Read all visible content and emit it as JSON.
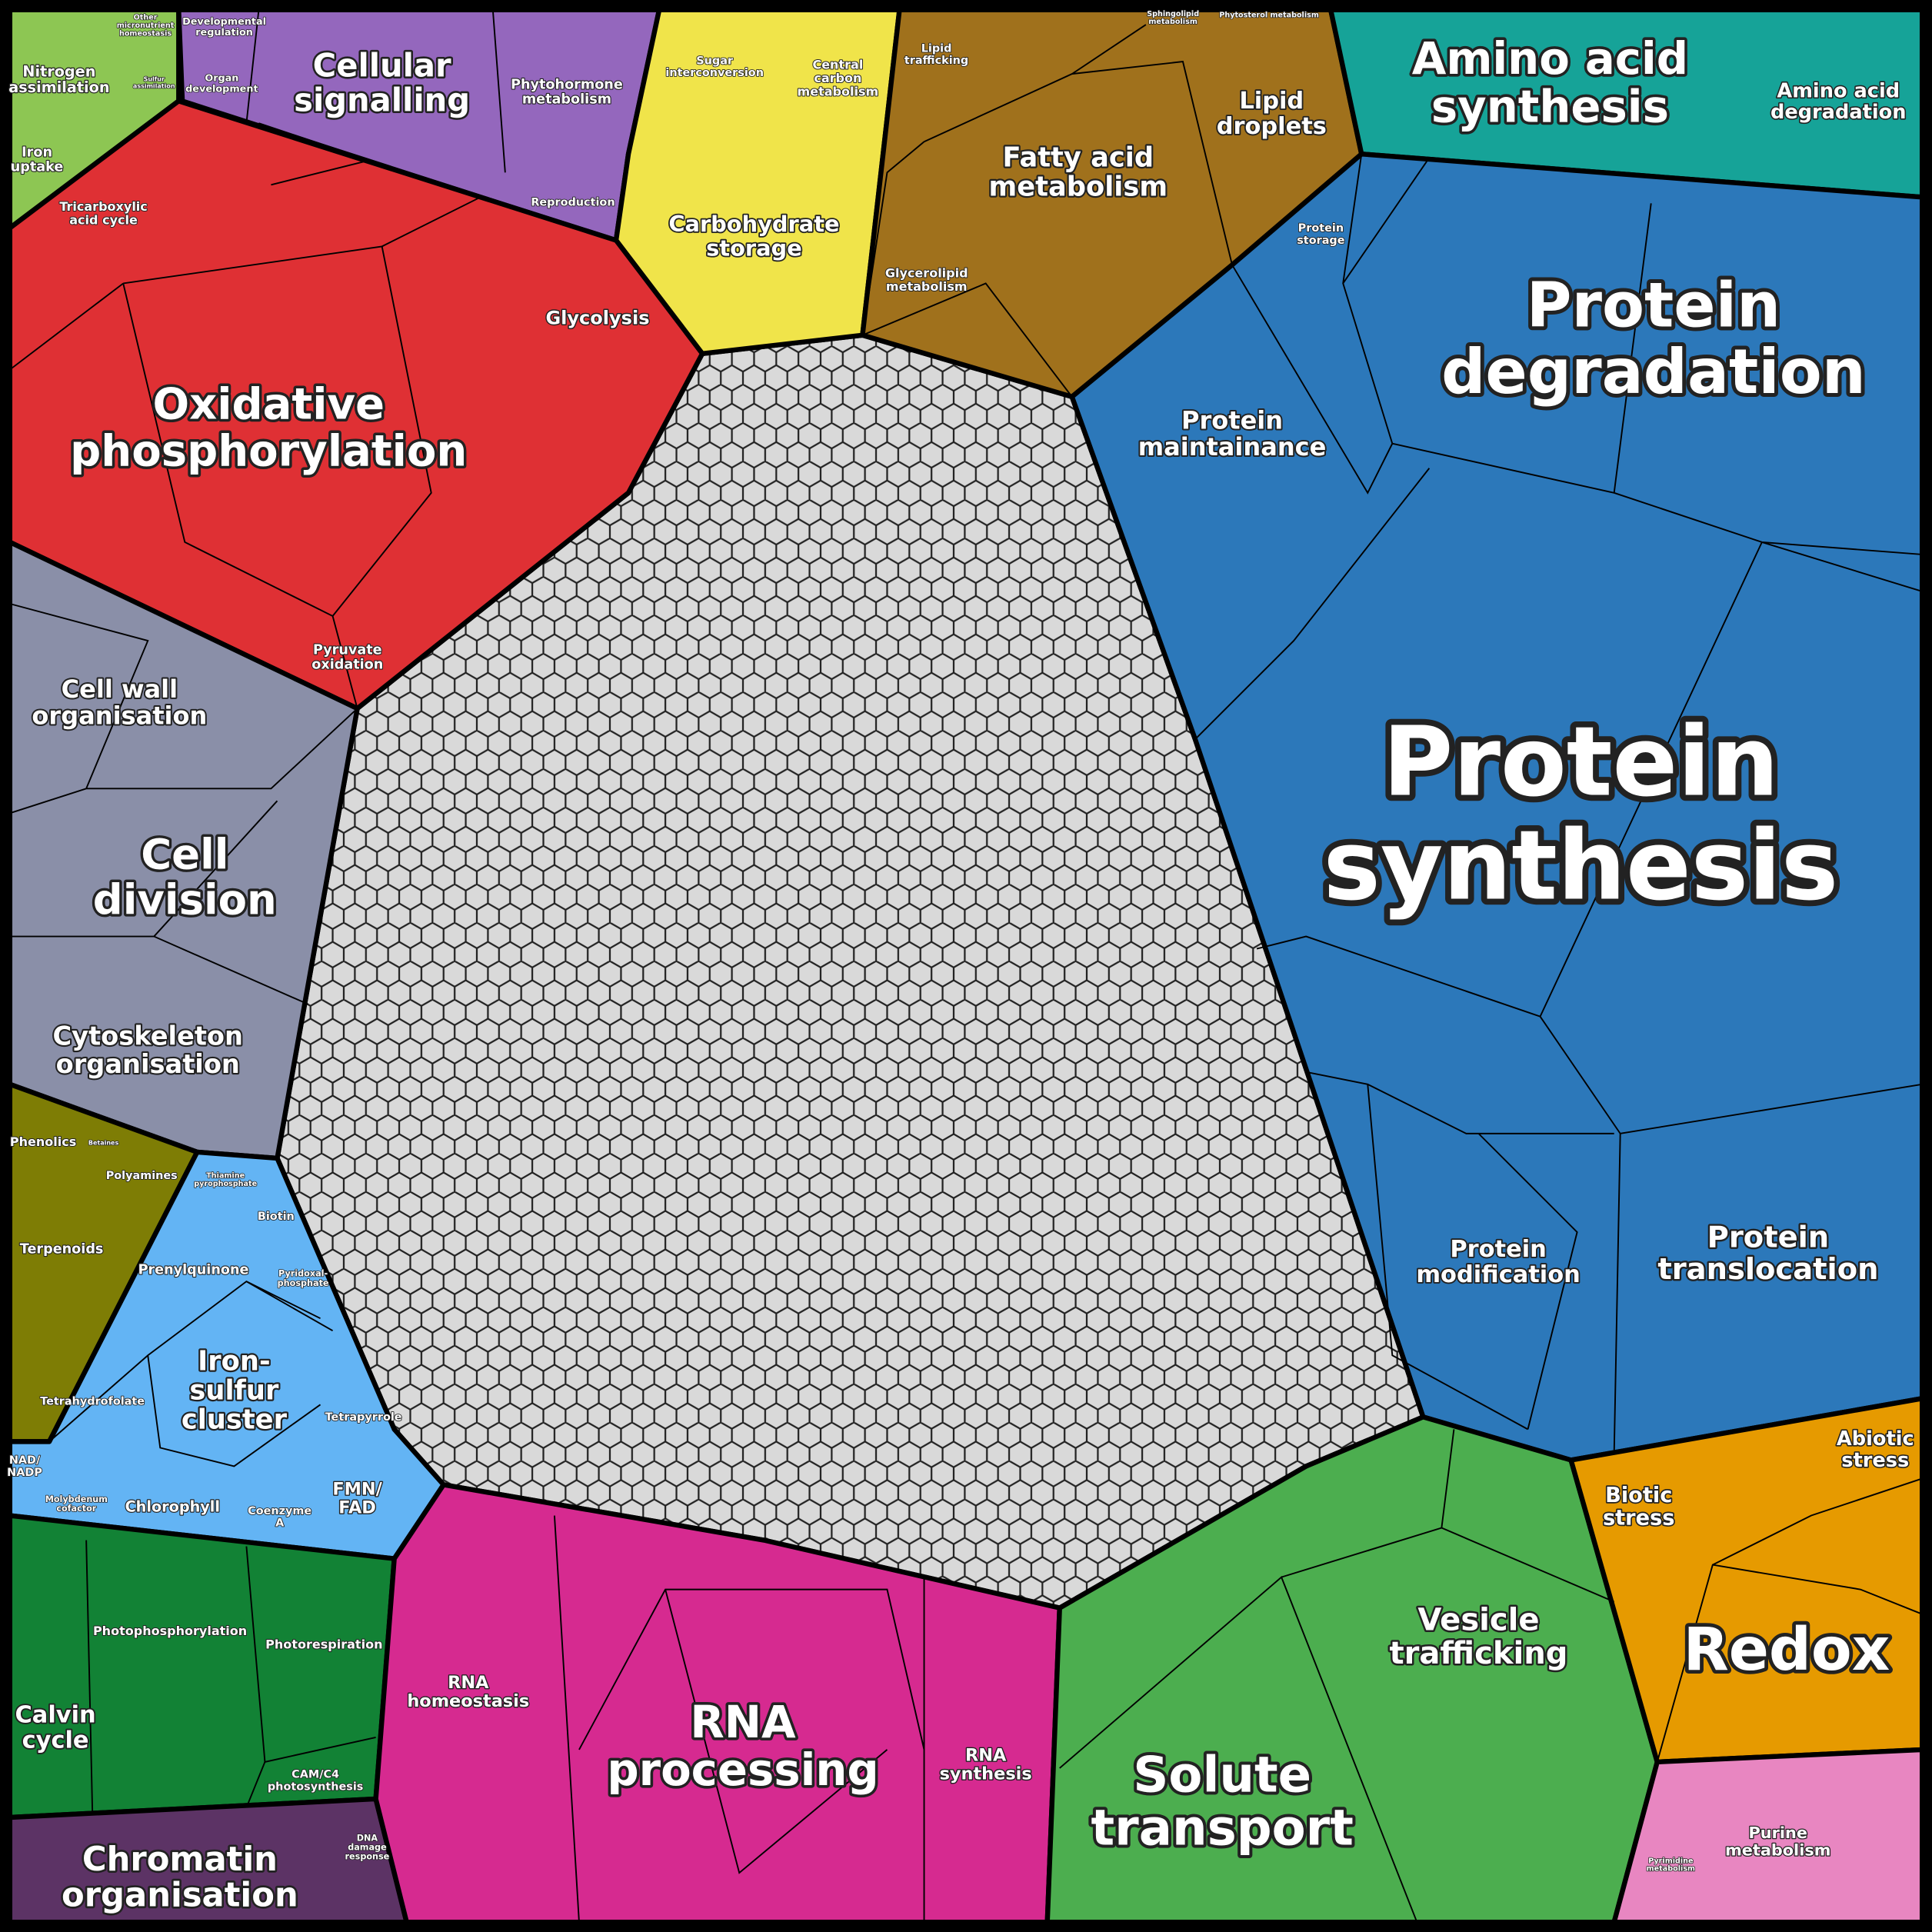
{
  "labels": [
    [
      "Nitrogen",
      "assimilation"
    ],
    [
      "Other",
      "micronutrient",
      "homeostasis"
    ],
    [
      "Sulfur",
      "assimilation"
    ],
    [
      "Iron",
      "uptake"
    ],
    [
      "Developmental",
      "regulation"
    ],
    [
      "Organ",
      "development"
    ],
    [
      "Cellular",
      "signalling"
    ],
    [
      "Phytohormone",
      "metabolism"
    ],
    [
      "Reproduction"
    ],
    [
      "Sugar",
      "interconversion"
    ],
    [
      "Central",
      "carbon",
      "metabolism"
    ],
    [
      "Carbohydrate",
      "storage"
    ],
    [
      "Lipid",
      "trafficking"
    ],
    [
      "Sphingolipid",
      "metabolism"
    ],
    [
      "Phytosterol metabolism"
    ],
    [
      "Fatty acid",
      "metabolism"
    ],
    [
      "Lipid",
      "droplets"
    ],
    [
      "Glycerolipid",
      "metabolism"
    ],
    [
      "Amino acid",
      "synthesis"
    ],
    [
      "Amino acid",
      "degradation"
    ],
    [
      "Protein",
      "storage"
    ],
    [
      "Protein",
      "degradation"
    ],
    [
      "Protein",
      "maintainance"
    ],
    [
      "Protein",
      "synthesis"
    ],
    [
      "Protein",
      "modification"
    ],
    [
      "Protein",
      "translocation"
    ],
    [
      "Tricarboxylic",
      "acid cycle"
    ],
    [
      "Glycolysis"
    ],
    [
      "Oxidative",
      "phosphorylation"
    ],
    [
      "Pyruvate",
      "oxidation"
    ],
    [
      "Cell wall",
      "organisation"
    ],
    [
      "Cell",
      "division"
    ],
    [
      "Cytoskeleton",
      "organisation"
    ],
    [
      "Phenolics"
    ],
    [
      "Betaines"
    ],
    [
      "Polyamines"
    ],
    [
      "Terpenoids"
    ],
    [
      "Thiamine",
      "pyrophosphate"
    ],
    [
      "Biotin"
    ],
    [
      "Prenylquinone"
    ],
    [
      "Pyridoxal-",
      "phosphate"
    ],
    [
      "Iron-",
      "sulfur",
      "cluster"
    ],
    [
      "Tetrahydrofolate"
    ],
    [
      "Tetrapyrrole"
    ],
    [
      "NAD/",
      "NADP"
    ],
    [
      "Molybdenum",
      "cofactor"
    ],
    [
      "Chlorophyll"
    ],
    [
      "Coenzyme",
      "A"
    ],
    [
      "FMN/",
      "FAD"
    ],
    [
      "Photophosphorylation"
    ],
    [
      "Photorespiration"
    ],
    [
      "Calvin",
      "cycle"
    ],
    [
      "CAM/C4",
      "photosynthesis"
    ],
    [
      "Chromatin",
      "organisation"
    ],
    [
      "DNA",
      "damage",
      "response"
    ],
    [
      "RNA",
      "homeostasis"
    ],
    [
      "RNA",
      "processing"
    ],
    [
      "RNA",
      "synthesis"
    ],
    [
      "Vesicle",
      "trafficking"
    ],
    [
      "Solute",
      "transport"
    ],
    [
      "Abiotic",
      "stress"
    ],
    [
      "Biotic",
      "stress"
    ],
    [
      "Redox"
    ],
    [
      "Purine",
      "metabolism"
    ],
    [
      "Pyrimidine",
      "metabolism"
    ]
  ]
}
